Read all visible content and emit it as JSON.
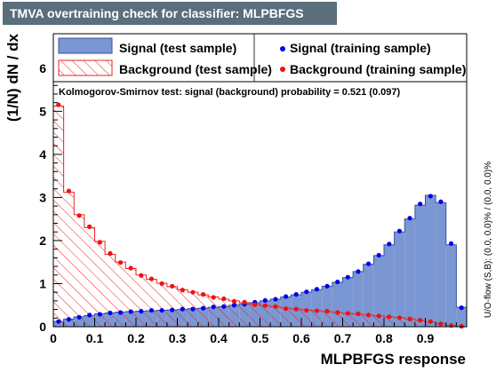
{
  "header": {
    "title": "TMVA overtraining check for classifier: MLPBFGS"
  },
  "ks_text": "Kolmogorov-Smirnov test: signal (background) probability = 0.521 (0.097)",
  "side_text": "U/O-flow (S,B): (0.0, 0.0)% / (0.0, 0.0)%",
  "colors": {
    "signal_fill": "#7b97d3",
    "signal_line": "#3a50a0",
    "signal_dot": "#0000ee",
    "background_line": "#ee2222",
    "background_dot": "#ee1111"
  },
  "chart_data": {
    "type": "histogram",
    "xlabel": "MLPBFGS response",
    "ylabel": "(1/N) dN / dx",
    "xlim": [
      0,
      1
    ],
    "ylim": [
      0,
      6.8
    ],
    "x_ticks": [
      "0",
      "0.1",
      "0.2",
      "0.3",
      "0.4",
      "0.5",
      "0.6",
      "0.7",
      "0.8",
      "0.9"
    ],
    "x_tick_values": [
      0,
      0.1,
      0.2,
      0.3,
      0.4,
      0.5,
      0.6,
      0.7,
      0.8,
      0.9
    ],
    "y_ticks": [
      "0",
      "1",
      "2",
      "3",
      "4",
      "5",
      "6"
    ],
    "y_tick_values": [
      0,
      1,
      2,
      3,
      4,
      5,
      6
    ],
    "bin_edges_start": 0,
    "bin_width": 0.025,
    "legend": [
      {
        "label": "Signal (test sample)",
        "style": "filled"
      },
      {
        "label": "Background (test sample)",
        "style": "hatched"
      },
      {
        "label": "Signal (training sample)",
        "style": "dots"
      },
      {
        "label": "Background (training sample)",
        "style": "dots"
      }
    ],
    "series": [
      {
        "name": "Signal (test sample)",
        "values": [
          0.12,
          0.18,
          0.23,
          0.26,
          0.3,
          0.32,
          0.34,
          0.35,
          0.36,
          0.37,
          0.38,
          0.39,
          0.4,
          0.42,
          0.43,
          0.45,
          0.47,
          0.5,
          0.53,
          0.56,
          0.6,
          0.64,
          0.69,
          0.74,
          0.8,
          0.86,
          0.94,
          1.03,
          1.14,
          1.28,
          1.45,
          1.65,
          1.9,
          2.2,
          2.5,
          2.82,
          3.05,
          2.88,
          1.9,
          0.45
        ]
      },
      {
        "name": "Background (test sample)",
        "values": [
          5.12,
          3.12,
          2.6,
          2.3,
          1.98,
          1.68,
          1.5,
          1.35,
          1.2,
          1.1,
          1.01,
          0.93,
          0.86,
          0.8,
          0.74,
          0.69,
          0.64,
          0.6,
          0.56,
          0.52,
          0.49,
          0.46,
          0.43,
          0.41,
          0.39,
          0.37,
          0.35,
          0.33,
          0.31,
          0.29,
          0.27,
          0.25,
          0.23,
          0.21,
          0.18,
          0.15,
          0.11,
          0.07,
          0.03,
          0.0
        ]
      },
      {
        "name": "Signal (training sample)",
        "values": [
          0.12,
          0.17,
          0.22,
          0.27,
          0.29,
          0.32,
          0.33,
          0.35,
          0.36,
          0.38,
          0.38,
          0.39,
          0.41,
          0.41,
          0.43,
          0.46,
          0.47,
          0.5,
          0.52,
          0.57,
          0.61,
          0.64,
          0.7,
          0.75,
          0.81,
          0.87,
          0.94,
          1.04,
          1.15,
          1.28,
          1.46,
          1.66,
          1.92,
          2.22,
          2.52,
          2.85,
          3.03,
          2.9,
          1.93,
          0.44
        ]
      },
      {
        "name": "Background (training sample)",
        "values": [
          5.15,
          3.15,
          2.58,
          2.32,
          1.96,
          1.7,
          1.49,
          1.36,
          1.19,
          1.11,
          1.0,
          0.94,
          0.85,
          0.8,
          0.75,
          0.68,
          0.65,
          0.59,
          0.57,
          0.51,
          0.49,
          0.47,
          0.42,
          0.41,
          0.38,
          0.37,
          0.36,
          0.33,
          0.31,
          0.3,
          0.27,
          0.25,
          0.23,
          0.21,
          0.18,
          0.15,
          0.12,
          0.07,
          0.03,
          0.01
        ]
      }
    ]
  }
}
